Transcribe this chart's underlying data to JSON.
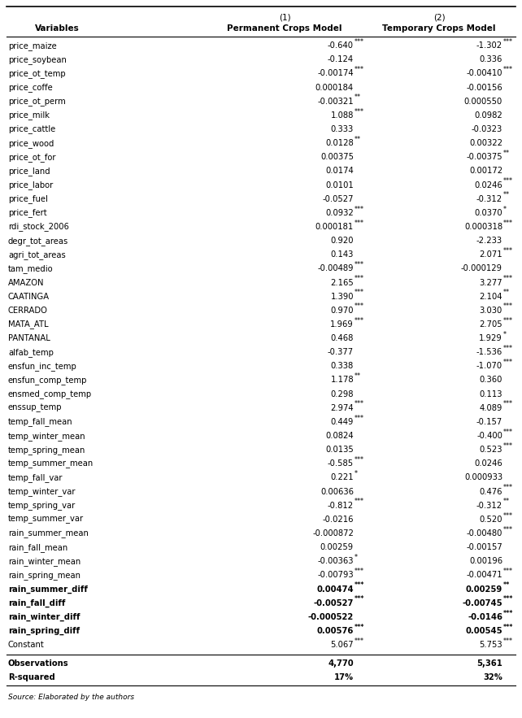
{
  "rows": [
    [
      "price_maize",
      "-0.640",
      "***",
      "-1.302",
      "***"
    ],
    [
      "price_soybean",
      "-0.124",
      "",
      "0.336",
      ""
    ],
    [
      "price_ot_temp",
      "-0.00174",
      "***",
      "-0.00410",
      "***"
    ],
    [
      "price_coffe",
      "0.000184",
      "",
      "-0.00156",
      ""
    ],
    [
      "price_ot_perm",
      "-0.00321",
      "**",
      "0.000550",
      ""
    ],
    [
      "price_milk",
      "1.088",
      "***",
      "0.0982",
      ""
    ],
    [
      "price_cattle",
      "0.333",
      "",
      "-0.0323",
      ""
    ],
    [
      "price_wood",
      "0.0128",
      "**",
      "0.00322",
      ""
    ],
    [
      "price_ot_for",
      "0.00375",
      "",
      "-0.00375",
      "**"
    ],
    [
      "price_land",
      "0.0174",
      "",
      "0.00172",
      ""
    ],
    [
      "price_labor",
      "0.0101",
      "",
      "0.0246",
      "***"
    ],
    [
      "price_fuel",
      "-0.0527",
      "",
      "-0.312",
      "**"
    ],
    [
      "price_fert",
      "0.0932",
      "***",
      "0.0370",
      "*"
    ],
    [
      "rdi_stock_2006",
      "0.000181",
      "***",
      "0.000318",
      "***"
    ],
    [
      "degr_tot_areas",
      "0.920",
      "",
      "-2.233",
      ""
    ],
    [
      "agri_tot_areas",
      "0.143",
      "",
      "2.071",
      "***"
    ],
    [
      "tam_medio",
      "-0.00489",
      "***",
      "-0.000129",
      ""
    ],
    [
      "AMAZON",
      "2.165",
      "***",
      "3.277",
      "***"
    ],
    [
      "CAATINGA",
      "1.390",
      "***",
      "2.104",
      "**"
    ],
    [
      "CERRADO",
      "0.970",
      "***",
      "3.030",
      "***"
    ],
    [
      "MATA_ATL",
      "1.969",
      "***",
      "2.705",
      "***"
    ],
    [
      "PANTANAL",
      "0.468",
      "",
      "1.929",
      "*"
    ],
    [
      "alfab_temp",
      "-0.377",
      "",
      "-1.536",
      "***"
    ],
    [
      "ensfun_inc_temp",
      "0.338",
      "",
      "-1.070",
      "***"
    ],
    [
      "ensfun_comp_temp",
      "1.178",
      "**",
      "0.360",
      ""
    ],
    [
      "ensmed_comp_temp",
      "0.298",
      "",
      "0.113",
      ""
    ],
    [
      "enssup_temp",
      "2.974",
      "***",
      "4.089",
      "***"
    ],
    [
      "temp_fall_mean",
      "0.449",
      "***",
      "-0.157",
      ""
    ],
    [
      "temp_winter_mean",
      "0.0824",
      "",
      "-0.400",
      "***"
    ],
    [
      "temp_spring_mean",
      "0.0135",
      "",
      "0.523",
      "***"
    ],
    [
      "temp_summer_mean",
      "-0.585",
      "***",
      "0.0246",
      ""
    ],
    [
      "temp_fall_var",
      "0.221",
      "*",
      "0.000933",
      ""
    ],
    [
      "temp_winter_var",
      "0.00636",
      "",
      "0.476",
      "***"
    ],
    [
      "temp_spring_var",
      "-0.812",
      "***",
      "-0.312",
      "**"
    ],
    [
      "temp_summer_var",
      "-0.0216",
      "",
      "0.520",
      "***"
    ],
    [
      "rain_summer_mean",
      "-0.000872",
      "",
      "-0.00480",
      "***"
    ],
    [
      "rain_fall_mean",
      "0.00259",
      "",
      "-0.00157",
      ""
    ],
    [
      "rain_winter_mean",
      "-0.00363",
      "*",
      "0.00196",
      ""
    ],
    [
      "rain_spring_mean",
      "-0.00793",
      "***",
      "-0.00471",
      "***"
    ],
    [
      "rain_summer_diff",
      "0.00474",
      "***",
      "0.00259",
      "**"
    ],
    [
      "rain_fall_diff",
      "-0.00527",
      "***",
      "-0.00745",
      "***"
    ],
    [
      "rain_winter_diff",
      "-0.000522",
      "",
      "-0.0146",
      "***"
    ],
    [
      "rain_spring_diff",
      "0.00576",
      "***",
      "0.00545",
      "***"
    ],
    [
      "Constant",
      "5.067",
      "***",
      "5.753",
      "***"
    ]
  ],
  "bold_rows": [
    "rain_summer_diff",
    "rain_fall_diff",
    "rain_winter_diff",
    "rain_spring_diff"
  ],
  "footer_rows": [
    [
      "Observations",
      "4,770",
      "5,361"
    ],
    [
      "R-squared",
      "17%",
      "32%"
    ]
  ],
  "source_text": "Source: Elaborated by the authors",
  "col0_label": "Variables",
  "col1_label1": "(1)",
  "col1_label2": "Permanent Crops Model",
  "col2_label1": "(2)",
  "col2_label2": "Temporary Crops Model"
}
